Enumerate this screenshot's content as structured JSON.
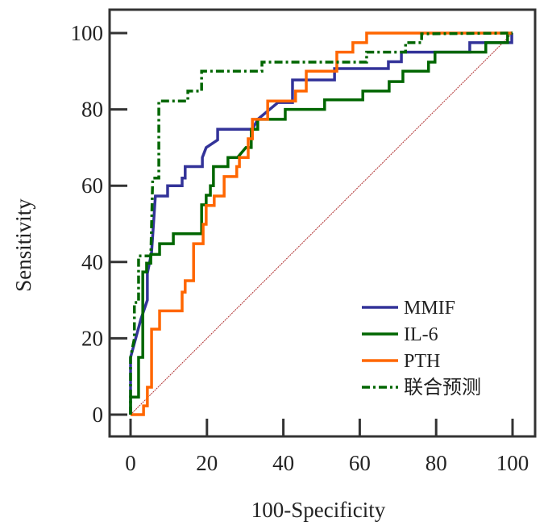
{
  "chart_data": {
    "type": "line",
    "title": "",
    "xlabel": "100-Specificity",
    "ylabel": "Sensitivity",
    "xlim": [
      0,
      100
    ],
    "ylim": [
      0,
      100
    ],
    "xticks": [
      "0",
      "20",
      "40",
      "60",
      "80",
      "100"
    ],
    "yticks": [
      "0",
      "20",
      "40",
      "60",
      "80",
      "100"
    ],
    "grid": false,
    "legend_position": "bottom-right",
    "reference_line": {
      "name": "diagonal",
      "color": "#b03030",
      "points": [
        [
          0,
          0
        ],
        [
          100,
          100
        ]
      ]
    },
    "series": [
      {
        "name": "MMIF",
        "color": "#333399",
        "style": "solid",
        "points": [
          [
            0,
            0
          ],
          [
            0,
            15
          ],
          [
            2.7,
            25
          ],
          [
            4.4,
            30
          ],
          [
            4.4,
            37
          ],
          [
            5.5,
            42.5
          ],
          [
            6.5,
            57.3
          ],
          [
            9.7,
            57.3
          ],
          [
            9.7,
            60
          ],
          [
            13.5,
            60
          ],
          [
            13.5,
            62
          ],
          [
            14.3,
            62
          ],
          [
            14.3,
            65
          ],
          [
            18.8,
            65
          ],
          [
            18.8,
            67.4
          ],
          [
            19.8,
            70
          ],
          [
            22.8,
            72
          ],
          [
            22.8,
            74.8
          ],
          [
            31.9,
            74.8
          ],
          [
            33.3,
            77.4
          ],
          [
            38.6,
            81.8
          ],
          [
            42.4,
            81.8
          ],
          [
            42.4,
            87.7
          ],
          [
            53.4,
            87.7
          ],
          [
            53.4,
            90.7
          ],
          [
            67.5,
            90.7
          ],
          [
            67.5,
            92.5
          ],
          [
            70.9,
            92.5
          ],
          [
            70.9,
            95
          ],
          [
            88.8,
            95
          ],
          [
            88.8,
            97.5
          ],
          [
            99.8,
            97.5
          ],
          [
            99.8,
            100
          ],
          [
            100,
            100
          ]
        ]
      },
      {
        "name": "IL-6",
        "color": "#006600",
        "style": "solid",
        "points": [
          [
            0,
            0
          ],
          [
            0,
            4.6
          ],
          [
            2.1,
            4.6
          ],
          [
            2.1,
            15
          ],
          [
            3.2,
            15
          ],
          [
            3.2,
            37.4
          ],
          [
            4.2,
            37.4
          ],
          [
            4.2,
            39.7
          ],
          [
            5.3,
            39.7
          ],
          [
            5.3,
            42
          ],
          [
            7.6,
            42
          ],
          [
            7.6,
            44.8
          ],
          [
            11.2,
            44.8
          ],
          [
            11.2,
            47.4
          ],
          [
            18.6,
            47.4
          ],
          [
            18.6,
            55
          ],
          [
            19.8,
            55
          ],
          [
            19.8,
            57.5
          ],
          [
            20.9,
            57.5
          ],
          [
            20.9,
            60
          ],
          [
            21.7,
            60
          ],
          [
            21.7,
            65
          ],
          [
            25.5,
            65
          ],
          [
            25.5,
            67.4
          ],
          [
            28,
            67.4
          ],
          [
            30.2,
            70
          ],
          [
            31.6,
            70
          ],
          [
            31.6,
            74.8
          ],
          [
            33.3,
            74.8
          ],
          [
            33.3,
            77.4
          ],
          [
            40.5,
            77.4
          ],
          [
            40.5,
            80
          ],
          [
            50.8,
            80
          ],
          [
            50.8,
            82.5
          ],
          [
            60.8,
            82.5
          ],
          [
            60.8,
            84.8
          ],
          [
            67.7,
            84.8
          ],
          [
            67.7,
            87.3
          ],
          [
            71.3,
            87.3
          ],
          [
            71.3,
            90
          ],
          [
            78,
            90
          ],
          [
            78,
            92.4
          ],
          [
            79.7,
            92.4
          ],
          [
            79.7,
            95
          ],
          [
            93,
            95
          ],
          [
            93,
            97.5
          ],
          [
            98.7,
            97.5
          ],
          [
            98.7,
            99.8
          ],
          [
            100,
            100
          ]
        ]
      },
      {
        "name": "PTH",
        "color": "#ff6600",
        "style": "solid",
        "points": [
          [
            0,
            0
          ],
          [
            3.4,
            0
          ],
          [
            3.4,
            2.3
          ],
          [
            4.4,
            2.3
          ],
          [
            4.4,
            7.2
          ],
          [
            5.5,
            7.2
          ],
          [
            5.5,
            22.4
          ],
          [
            7.6,
            22.4
          ],
          [
            7.6,
            27.2
          ],
          [
            13.5,
            27.2
          ],
          [
            13.5,
            32.1
          ],
          [
            14.3,
            32.1
          ],
          [
            14.3,
            35.1
          ],
          [
            16.5,
            35.1
          ],
          [
            16.5,
            44.8
          ],
          [
            19,
            44.8
          ],
          [
            19,
            49.9
          ],
          [
            19.8,
            49.9
          ],
          [
            19.8,
            54.8
          ],
          [
            21.9,
            54.8
          ],
          [
            21.9,
            57.3
          ],
          [
            24.5,
            57.3
          ],
          [
            24.5,
            62.4
          ],
          [
            27.8,
            62.4
          ],
          [
            27.8,
            65
          ],
          [
            28.5,
            65
          ],
          [
            28.5,
            67.4
          ],
          [
            30.8,
            67.4
          ],
          [
            30.8,
            72.3
          ],
          [
            31.9,
            72.3
          ],
          [
            31.9,
            77.4
          ],
          [
            35.9,
            77.4
          ],
          [
            35.9,
            82.2
          ],
          [
            43.2,
            82.2
          ],
          [
            43.2,
            84.8
          ],
          [
            46,
            84.8
          ],
          [
            46,
            90
          ],
          [
            54,
            90
          ],
          [
            54,
            95
          ],
          [
            58.2,
            95
          ],
          [
            58.2,
            97.5
          ],
          [
            61.8,
            97.5
          ],
          [
            61.8,
            100
          ],
          [
            100,
            100
          ]
        ]
      },
      {
        "name": "联合预测",
        "color": "#006600",
        "style": "dashdot",
        "points": [
          [
            0,
            0
          ],
          [
            0,
            15
          ],
          [
            1,
            20
          ],
          [
            1,
            29.4
          ],
          [
            2.1,
            29.4
          ],
          [
            2.1,
            41.6
          ],
          [
            5.3,
            41.6
          ],
          [
            5.8,
            62
          ],
          [
            7.4,
            62
          ],
          [
            7.4,
            82.2
          ],
          [
            15,
            82.2
          ],
          [
            15,
            84.8
          ],
          [
            18.6,
            84.8
          ],
          [
            18.6,
            90
          ],
          [
            34.4,
            90
          ],
          [
            34.4,
            92.4
          ],
          [
            61.8,
            92.4
          ],
          [
            61.8,
            95
          ],
          [
            72,
            95
          ],
          [
            72,
            97.5
          ],
          [
            76.2,
            97.5
          ],
          [
            76.2,
            99.8
          ],
          [
            100,
            100
          ]
        ]
      }
    ]
  }
}
